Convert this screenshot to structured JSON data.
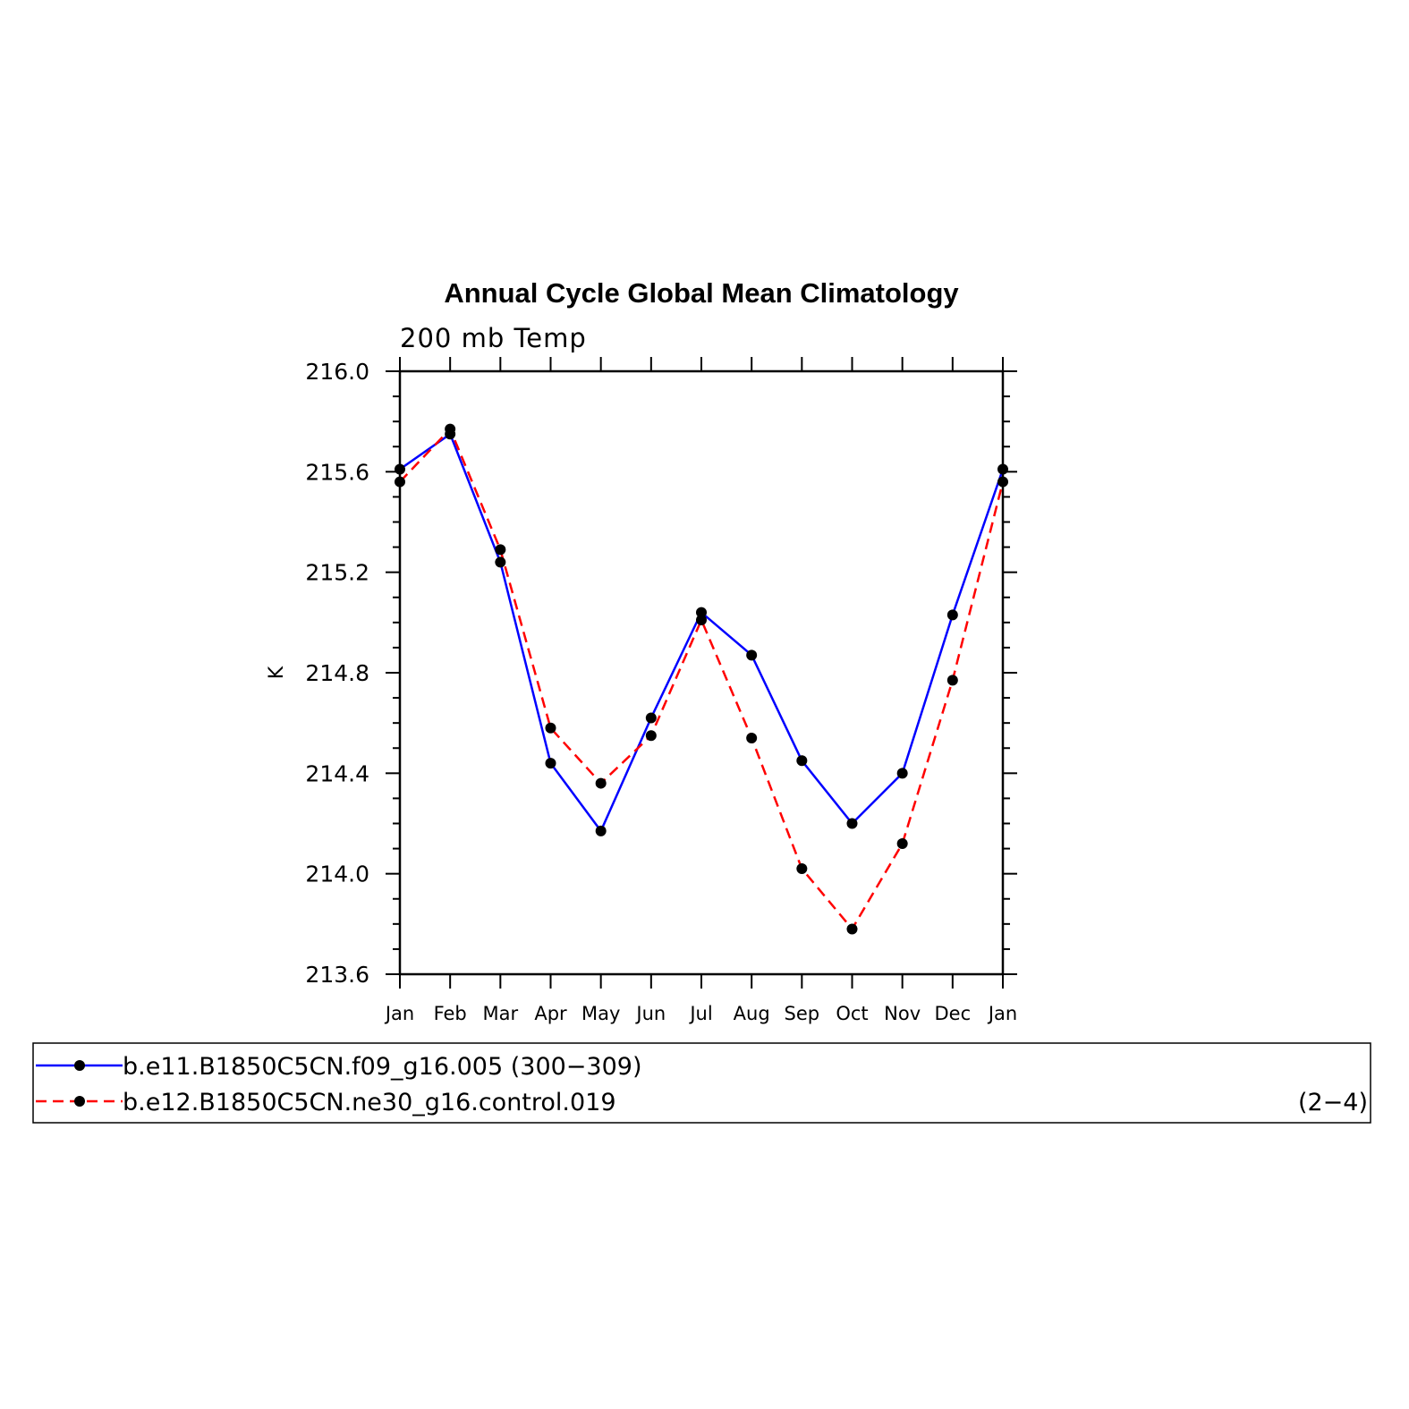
{
  "chart_data": {
    "type": "line",
    "title": "Annual Cycle Global Mean Climatology",
    "subtitle": "200 mb Temp",
    "ylabel": "K",
    "xlabel": "",
    "categories": [
      "Jan",
      "Feb",
      "Mar",
      "Apr",
      "May",
      "Jun",
      "Jul",
      "Aug",
      "Sep",
      "Oct",
      "Nov",
      "Dec",
      "Jan"
    ],
    "ylim": [
      213.6,
      216.0
    ],
    "yticks": [
      "213.6",
      "214.0",
      "214.4",
      "214.8",
      "215.2",
      "215.6",
      "216.0"
    ],
    "series": [
      {
        "name": "b.e11.B1850C5CN.f09_g16.005 (300−309)",
        "color": "#0000ff",
        "dash": "solid",
        "values": [
          215.61,
          215.75,
          215.24,
          214.44,
          214.17,
          214.62,
          215.04,
          214.87,
          214.45,
          214.2,
          214.4,
          215.03,
          215.61
        ]
      },
      {
        "name": "b.e12.B1850C5CN.ne30_g16.control.019",
        "color": "#ff0000",
        "dash": "dashed",
        "values": [
          215.56,
          215.77,
          215.29,
          214.58,
          214.36,
          214.55,
          215.01,
          214.54,
          214.02,
          213.78,
          214.12,
          214.77,
          215.56
        ]
      }
    ],
    "legend_extra": "(2−4)",
    "legend_position": "bottom",
    "marker": "circle",
    "marker_color": "#000000"
  }
}
